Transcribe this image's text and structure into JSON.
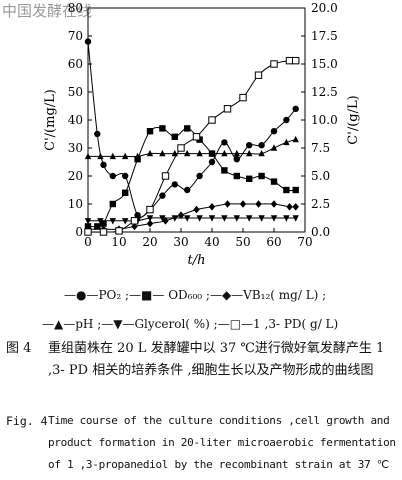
{
  "watermark": "中国发酵在线",
  "chart_data": {
    "type": "line",
    "xlabel": "t/h",
    "ylabel_left": "C'/(mg/L)",
    "ylabel_right": "C'/(g/L)",
    "xlim": [
      0,
      70
    ],
    "ylim_left": [
      0,
      80
    ],
    "ylim_right": [
      0,
      20
    ],
    "xticks": [
      "0",
      "10",
      "20",
      "30",
      "40",
      "50",
      "60",
      "70"
    ],
    "yticks_left": [
      "0",
      "10",
      "20",
      "30",
      "40",
      "50",
      "60",
      "70",
      "80"
    ],
    "yticks_right": [
      "0.0",
      "2.5",
      "5.0",
      "7.5",
      "10.0",
      "12.5",
      "15.0",
      "17.5",
      "20.0"
    ],
    "grid": false,
    "series": [
      {
        "name": "PO2",
        "marker": "circle-filled",
        "axis": "left",
        "x": [
          0,
          3,
          5,
          8,
          12,
          16,
          20,
          24,
          28,
          32,
          36,
          40,
          44,
          48,
          52,
          56,
          60,
          64,
          67
        ],
        "y": [
          68,
          35,
          24,
          20,
          20,
          6,
          8,
          13,
          17,
          15,
          20,
          25,
          32,
          26,
          31,
          31,
          36,
          40,
          44
        ]
      },
      {
        "name": "OD600",
        "marker": "square-filled",
        "axis": "left",
        "x": [
          0,
          3,
          5,
          8,
          12,
          16,
          20,
          24,
          28,
          32,
          36,
          40,
          44,
          48,
          52,
          56,
          60,
          64,
          67
        ],
        "y": [
          2,
          2,
          3,
          10,
          14,
          26,
          36,
          37,
          34,
          37,
          33,
          28,
          22,
          20,
          19,
          20,
          18,
          15,
          15
        ]
      },
      {
        "name": "VB12(mg/L)",
        "marker": "diamond-filled",
        "axis": "left",
        "x": [
          0,
          5,
          10,
          15,
          20,
          25,
          30,
          35,
          40,
          45,
          50,
          55,
          60,
          65,
          67
        ],
        "y": [
          1,
          1,
          1,
          2,
          3,
          4,
          6,
          8,
          9,
          10,
          10,
          10,
          10,
          9,
          9
        ]
      },
      {
        "name": "pH",
        "marker": "triangle-filled",
        "axis": "left",
        "x": [
          0,
          4,
          8,
          12,
          16,
          20,
          24,
          28,
          32,
          36,
          40,
          44,
          48,
          52,
          56,
          60,
          64,
          67
        ],
        "y": [
          27,
          27,
          27,
          27,
          27,
          28,
          28,
          28,
          28,
          28,
          28,
          28,
          28,
          28,
          28,
          30,
          32,
          33
        ]
      },
      {
        "name": "Glycerol(%)",
        "marker": "triangle-down-filled",
        "axis": "left",
        "x": [
          0,
          4,
          8,
          12,
          16,
          20,
          24,
          28,
          32,
          36,
          40,
          44,
          48,
          52,
          56,
          60,
          64,
          67
        ],
        "y": [
          4,
          4,
          4,
          4,
          4,
          5,
          5,
          5,
          5,
          5,
          5,
          5,
          5,
          5,
          5,
          5,
          5,
          5
        ]
      },
      {
        "name": "1,3-PD(g/L)",
        "marker": "square-open",
        "axis": "right",
        "x": [
          0,
          5,
          10,
          15,
          20,
          25,
          30,
          35,
          40,
          45,
          50,
          55,
          60,
          65,
          67
        ],
        "y": [
          0,
          0,
          0.1,
          1,
          2,
          5,
          7.5,
          8.5,
          10,
          11,
          12,
          14,
          15,
          15.3,
          15.3
        ]
      }
    ]
  },
  "legend": {
    "line1": "—●—PO₂ ;—■— OD₆₀₀ ;—◆—VB₁₂( mg/ L) ;",
    "line2": "—▲—pH ;—▼—Glycerol( %) ;—□—1 ,3- PD( g/ L)"
  },
  "caption": {
    "zh_label": "图 4",
    "zh_text": "重组菌株在 20 L 发酵罐中以 37 ℃进行微好氧发酵产生 1 ,3- PD 相关的培养条件 ,细胞生长以及产物形成的曲线图",
    "en_label": "Fig. 4",
    "en_text": "Time course of the culture conditions ,cell growth and product formation in 20-liter microaerobic fermentation of 1 ,3-propanediol by the recombinant strain at 37 ℃"
  }
}
